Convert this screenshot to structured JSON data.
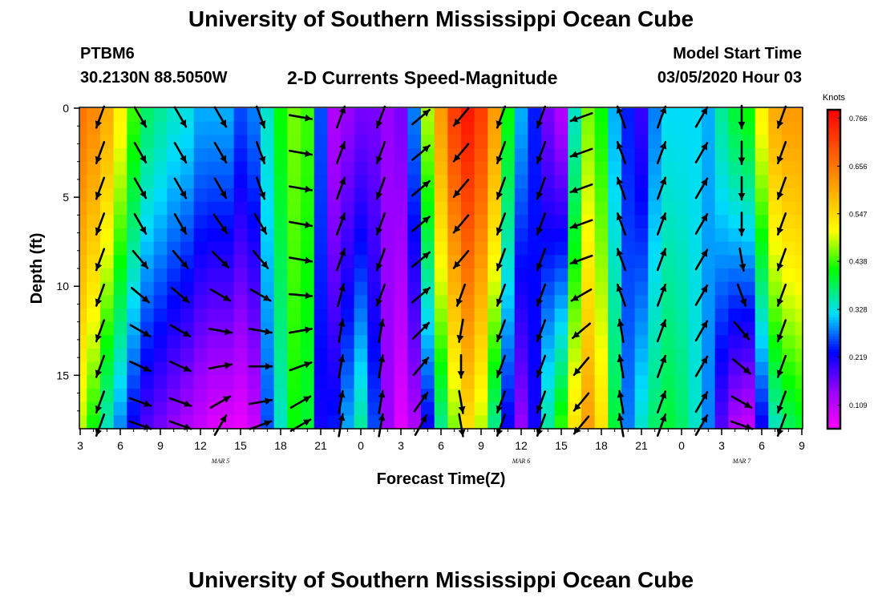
{
  "header": {
    "title": "University of Southern Mississippi Ocean Cube",
    "station": "PTBM6",
    "coords": "30.2130N 88.5050W",
    "subtitle": "2-D Currents Speed-Magnitude",
    "model_start_label": "Model Start Time",
    "model_start_value": "03/05/2020 Hour 03"
  },
  "footer": {
    "title": "University of Southern Mississippi Ocean Cube"
  },
  "chart_data": {
    "type": "heatmap",
    "title": "2-D Currents Speed-Magnitude",
    "xlabel": "Forecast Time(Z)",
    "ylabel": "Depth (ft)",
    "x_range_hours": [
      0,
      54
    ],
    "y_range_ft": [
      0,
      18
    ],
    "x_ticks": [
      {
        "h": 0,
        "label": "3"
      },
      {
        "h": 3,
        "label": "6"
      },
      {
        "h": 6,
        "label": "9"
      },
      {
        "h": 9,
        "label": "12"
      },
      {
        "h": 12,
        "label": "15"
      },
      {
        "h": 15,
        "label": "18"
      },
      {
        "h": 18,
        "label": "21"
      },
      {
        "h": 21,
        "label": "0"
      },
      {
        "h": 24,
        "label": "3"
      },
      {
        "h": 27,
        "label": "6"
      },
      {
        "h": 30,
        "label": "9"
      },
      {
        "h": 33,
        "label": "12"
      },
      {
        "h": 36,
        "label": "15"
      },
      {
        "h": 39,
        "label": "18"
      },
      {
        "h": 42,
        "label": "21"
      },
      {
        "h": 45,
        "label": "0"
      },
      {
        "h": 48,
        "label": "3"
      },
      {
        "h": 51,
        "label": "6"
      },
      {
        "h": 54,
        "label": "9"
      }
    ],
    "day_labels": [
      {
        "h": 10.5,
        "label": "MAR 5"
      },
      {
        "h": 33,
        "label": "MAR 6"
      },
      {
        "h": 49.5,
        "label": "MAR 7"
      }
    ],
    "y_ticks": [
      {
        "ft": 0,
        "label": "0"
      },
      {
        "ft": 5,
        "label": "5"
      },
      {
        "ft": 10,
        "label": "10"
      },
      {
        "ft": 15,
        "label": "15"
      }
    ],
    "colorbar": {
      "units": "Knots",
      "vmin": 0.055,
      "vmax": 0.785,
      "ticks": [
        0.766,
        0.656,
        0.547,
        0.438,
        0.328,
        0.219,
        0.109
      ],
      "tick_labels": [
        "0.766",
        "0.656",
        "0.547",
        "0.438",
        "0.328",
        "0.219",
        "0.109"
      ]
    },
    "speed_profile": [
      {
        "h": 0,
        "top": 0.66,
        "bot": 0.48
      },
      {
        "h": 1,
        "top": 0.64,
        "bot": 0.42
      },
      {
        "h": 2,
        "top": 0.6,
        "bot": 0.34
      },
      {
        "h": 3,
        "top": 0.52,
        "bot": 0.28
      },
      {
        "h": 4,
        "top": 0.44,
        "bot": 0.22
      },
      {
        "h": 5,
        "top": 0.38,
        "bot": 0.18
      },
      {
        "h": 6,
        "top": 0.36,
        "bot": 0.16
      },
      {
        "h": 7,
        "top": 0.34,
        "bot": 0.14
      },
      {
        "h": 8,
        "top": 0.33,
        "bot": 0.12
      },
      {
        "h": 9,
        "top": 0.3,
        "bot": 0.1
      },
      {
        "h": 10,
        "top": 0.3,
        "bot": 0.08
      },
      {
        "h": 11,
        "top": 0.3,
        "bot": 0.08
      },
      {
        "h": 12,
        "top": 0.26,
        "bot": 0.07
      },
      {
        "h": 13,
        "top": 0.28,
        "bot": 0.1
      },
      {
        "h": 14,
        "top": 0.34,
        "bot": 0.26
      },
      {
        "h": 15,
        "top": 0.42,
        "bot": 0.34
      },
      {
        "h": 16,
        "top": 0.46,
        "bot": 0.42
      },
      {
        "h": 17,
        "top": 0.44,
        "bot": 0.4
      },
      {
        "h": 18,
        "top": 0.26,
        "bot": 0.22
      },
      {
        "h": 19,
        "top": 0.12,
        "bot": 0.24
      },
      {
        "h": 20,
        "top": 0.14,
        "bot": 0.3
      },
      {
        "h": 21,
        "top": 0.16,
        "bot": 0.36
      },
      {
        "h": 22,
        "top": 0.16,
        "bot": 0.26
      },
      {
        "h": 23,
        "top": 0.14,
        "bot": 0.14
      },
      {
        "h": 24,
        "top": 0.16,
        "bot": 0.08
      },
      {
        "h": 25,
        "top": 0.28,
        "bot": 0.12
      },
      {
        "h": 26,
        "top": 0.48,
        "bot": 0.22
      },
      {
        "h": 27,
        "top": 0.62,
        "bot": 0.36
      },
      {
        "h": 28,
        "top": 0.72,
        "bot": 0.46
      },
      {
        "h": 29,
        "top": 0.76,
        "bot": 0.54
      },
      {
        "h": 30,
        "top": 0.72,
        "bot": 0.48
      },
      {
        "h": 31,
        "top": 0.62,
        "bot": 0.36
      },
      {
        "h": 32,
        "top": 0.42,
        "bot": 0.22
      },
      {
        "h": 33,
        "top": 0.3,
        "bot": 0.14
      },
      {
        "h": 34,
        "top": 0.24,
        "bot": 0.22
      },
      {
        "h": 35,
        "top": 0.16,
        "bot": 0.36
      },
      {
        "h": 36,
        "top": 0.12,
        "bot": 0.44
      },
      {
        "h": 37,
        "top": 0.34,
        "bot": 0.54
      },
      {
        "h": 38,
        "top": 0.46,
        "bot": 0.62
      },
      {
        "h": 39,
        "top": 0.42,
        "bot": 0.54
      },
      {
        "h": 40,
        "top": 0.3,
        "bot": 0.4
      },
      {
        "h": 41,
        "top": 0.24,
        "bot": 0.28
      },
      {
        "h": 42,
        "top": 0.2,
        "bot": 0.34
      },
      {
        "h": 43,
        "top": 0.28,
        "bot": 0.38
      },
      {
        "h": 44,
        "top": 0.32,
        "bot": 0.4
      },
      {
        "h": 45,
        "top": 0.32,
        "bot": 0.38
      },
      {
        "h": 46,
        "top": 0.32,
        "bot": 0.34
      },
      {
        "h": 47,
        "top": 0.3,
        "bot": 0.28
      },
      {
        "h": 48,
        "top": 0.36,
        "bot": 0.18
      },
      {
        "h": 49,
        "top": 0.4,
        "bot": 0.12
      },
      {
        "h": 50,
        "top": 0.42,
        "bot": 0.1
      },
      {
        "h": 51,
        "top": 0.52,
        "bot": 0.22
      },
      {
        "h": 52,
        "top": 0.6,
        "bot": 0.34
      },
      {
        "h": 53,
        "top": 0.62,
        "bot": 0.38
      },
      {
        "h": 54,
        "top": 0.62,
        "bot": 0.4
      }
    ],
    "vector_columns_hours": [
      1.5,
      4.5,
      7.5,
      10.5,
      13.5,
      16.5,
      19.5,
      22.5,
      25.5,
      28.5,
      31.5,
      34.5,
      37.5,
      40.5,
      43.5,
      46.5,
      49.5,
      52.5
    ],
    "vector_depths_ft": [
      0.5,
      2.5,
      4.5,
      6.5,
      8.5,
      10.5,
      12.5,
      14.5,
      16.5,
      17.8
    ],
    "vector_direction_deg": [
      [
        200,
        200,
        200,
        200,
        200,
        200,
        200,
        200,
        200,
        200
      ],
      [
        150,
        150,
        150,
        150,
        140,
        130,
        120,
        115,
        110,
        110
      ],
      [
        150,
        150,
        150,
        150,
        140,
        130,
        120,
        115,
        110,
        110
      ],
      [
        150,
        150,
        150,
        145,
        135,
        120,
        100,
        80,
        60,
        30
      ],
      [
        160,
        160,
        160,
        150,
        140,
        120,
        100,
        90,
        80,
        70
      ],
      [
        100,
        100,
        100,
        100,
        100,
        95,
        80,
        70,
        60,
        60
      ],
      [
        20,
        20,
        20,
        20,
        20,
        15,
        10,
        10,
        10,
        10
      ],
      [
        200,
        200,
        200,
        200,
        200,
        200,
        10,
        10,
        10,
        10
      ],
      [
        50,
        50,
        50,
        50,
        50,
        50,
        45,
        40,
        35,
        30
      ],
      [
        220,
        220,
        220,
        220,
        220,
        200,
        190,
        180,
        170,
        170
      ],
      [
        200,
        200,
        200,
        200,
        200,
        200,
        200,
        200,
        200,
        200
      ],
      [
        200,
        200,
        200,
        200,
        200,
        200,
        200,
        200,
        200,
        200
      ],
      [
        250,
        250,
        250,
        250,
        250,
        240,
        230,
        220,
        220,
        220
      ],
      [
        340,
        340,
        340,
        340,
        340,
        340,
        350,
        350,
        350,
        350
      ],
      [
        20,
        20,
        20,
        20,
        20,
        20,
        20,
        20,
        20,
        20
      ],
      [
        30,
        30,
        30,
        30,
        30,
        30,
        30,
        30,
        30,
        30
      ],
      [
        180,
        180,
        180,
        180,
        170,
        160,
        140,
        130,
        120,
        110
      ],
      [
        200,
        200,
        200,
        200,
        200,
        200,
        200,
        200,
        200,
        200
      ]
    ]
  }
}
